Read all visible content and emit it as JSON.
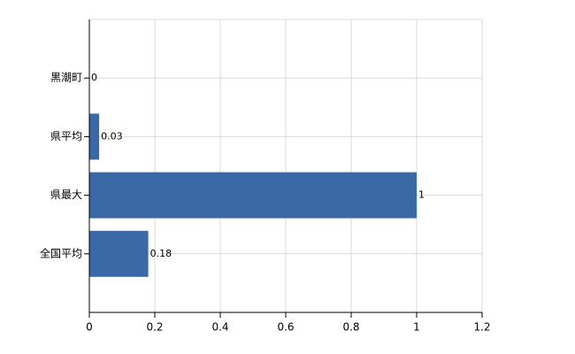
{
  "chart_data": {
    "type": "barh",
    "categories": [
      "黒潮町",
      "県平均",
      "県最大",
      "全国平均"
    ],
    "values": [
      0,
      0.03,
      1,
      0.18
    ],
    "color": "#3a69a5",
    "xlim": [
      0,
      1.2
    ],
    "xticks": [
      0,
      0.2,
      0.4,
      0.6,
      0.8,
      1,
      1.2
    ],
    "grid": true
  }
}
